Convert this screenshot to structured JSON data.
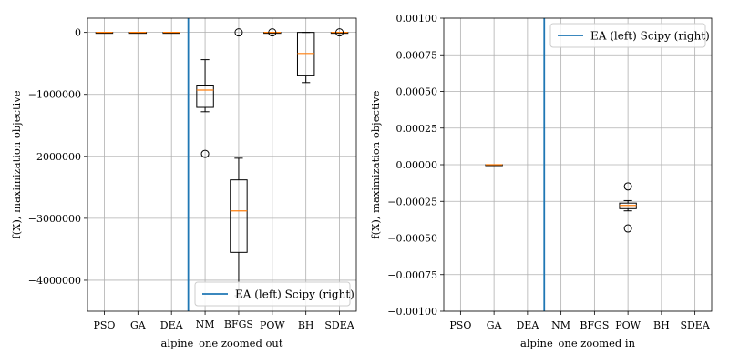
{
  "chart_data": [
    {
      "type": "box",
      "xlabel": "alpine_one zoomed out",
      "ylabel": "f(X), maximization objective",
      "ylim": [
        -4500000,
        230000
      ],
      "yticks": [
        0,
        -1000000,
        -2000000,
        -3000000,
        -4000000
      ],
      "ytick_labels": [
        "0",
        "−1000000",
        "−2000000",
        "−3000000",
        "−4000000"
      ],
      "categories": [
        "PSO",
        "GA",
        "DEA",
        "NM",
        "BFGS",
        "POW",
        "BH",
        "SDEA"
      ],
      "divider_after_index": 2,
      "legend": {
        "label": "EA (left) Scipy (right)",
        "loc": "lower right"
      },
      "grid": true,
      "boxes": [
        {
          "category": "PSO",
          "min": -3000,
          "q1": -2000,
          "median": 0,
          "q3": 0,
          "max": 0,
          "outliers": []
        },
        {
          "category": "GA",
          "min": -3000,
          "q1": -2000,
          "median": 0,
          "q3": 0,
          "max": 0,
          "outliers": []
        },
        {
          "category": "DEA",
          "min": -3000,
          "q1": -2000,
          "median": 0,
          "q3": 0,
          "max": 0,
          "outliers": []
        },
        {
          "category": "NM",
          "min": -1280000,
          "q1": -1210000,
          "median": -930000,
          "q3": -850000,
          "max": -440000,
          "outliers": [
            -1960000
          ]
        },
        {
          "category": "BFGS",
          "min": -4250000,
          "q1": -3550000,
          "median": -2880000,
          "q3": -2380000,
          "max": -2030000,
          "outliers": [
            0
          ]
        },
        {
          "category": "POW",
          "min": -3000,
          "q1": -2000,
          "median": 0,
          "q3": 0,
          "max": 0,
          "outliers": [
            0
          ]
        },
        {
          "category": "BH",
          "min": -810000,
          "q1": -690000,
          "median": -340000,
          "q3": 0,
          "max": 0,
          "outliers": []
        },
        {
          "category": "SDEA",
          "min": -3000,
          "q1": -2000,
          "median": 0,
          "q3": 0,
          "max": 0,
          "outliers": [
            0
          ]
        }
      ]
    },
    {
      "type": "box",
      "xlabel": "alpine_one zoomed in",
      "ylabel": "f(X), maximization objective",
      "ylim": [
        -0.001,
        0.001
      ],
      "yticks": [
        0.001,
        0.00075,
        0.0005,
        0.00025,
        0,
        -0.00025,
        -0.0005,
        -0.00075,
        -0.001
      ],
      "ytick_labels": [
        "0.00100",
        "0.00075",
        "0.00050",
        "0.00025",
        "0.00000",
        "−0.00025",
        "−0.00050",
        "−0.00075",
        "−0.00100"
      ],
      "categories": [
        "PSO",
        "GA",
        "DEA",
        "NM",
        "BFGS",
        "POW",
        "BH",
        "SDEA"
      ],
      "divider_after_index": 2,
      "legend": {
        "label": "EA (left) Scipy (right)",
        "loc": "upper right"
      },
      "grid": true,
      "boxes": [
        {
          "category": "GA",
          "min": -2e-06,
          "q1": -1e-06,
          "median": 0,
          "q3": 0,
          "max": 0,
          "outliers": []
        },
        {
          "category": "POW",
          "min": -0.000315,
          "q1": -0.0003,
          "median": -0.000278,
          "q3": -0.000262,
          "max": -0.000245,
          "outliers": [
            -0.000148,
            -0.000435
          ]
        }
      ]
    }
  ]
}
